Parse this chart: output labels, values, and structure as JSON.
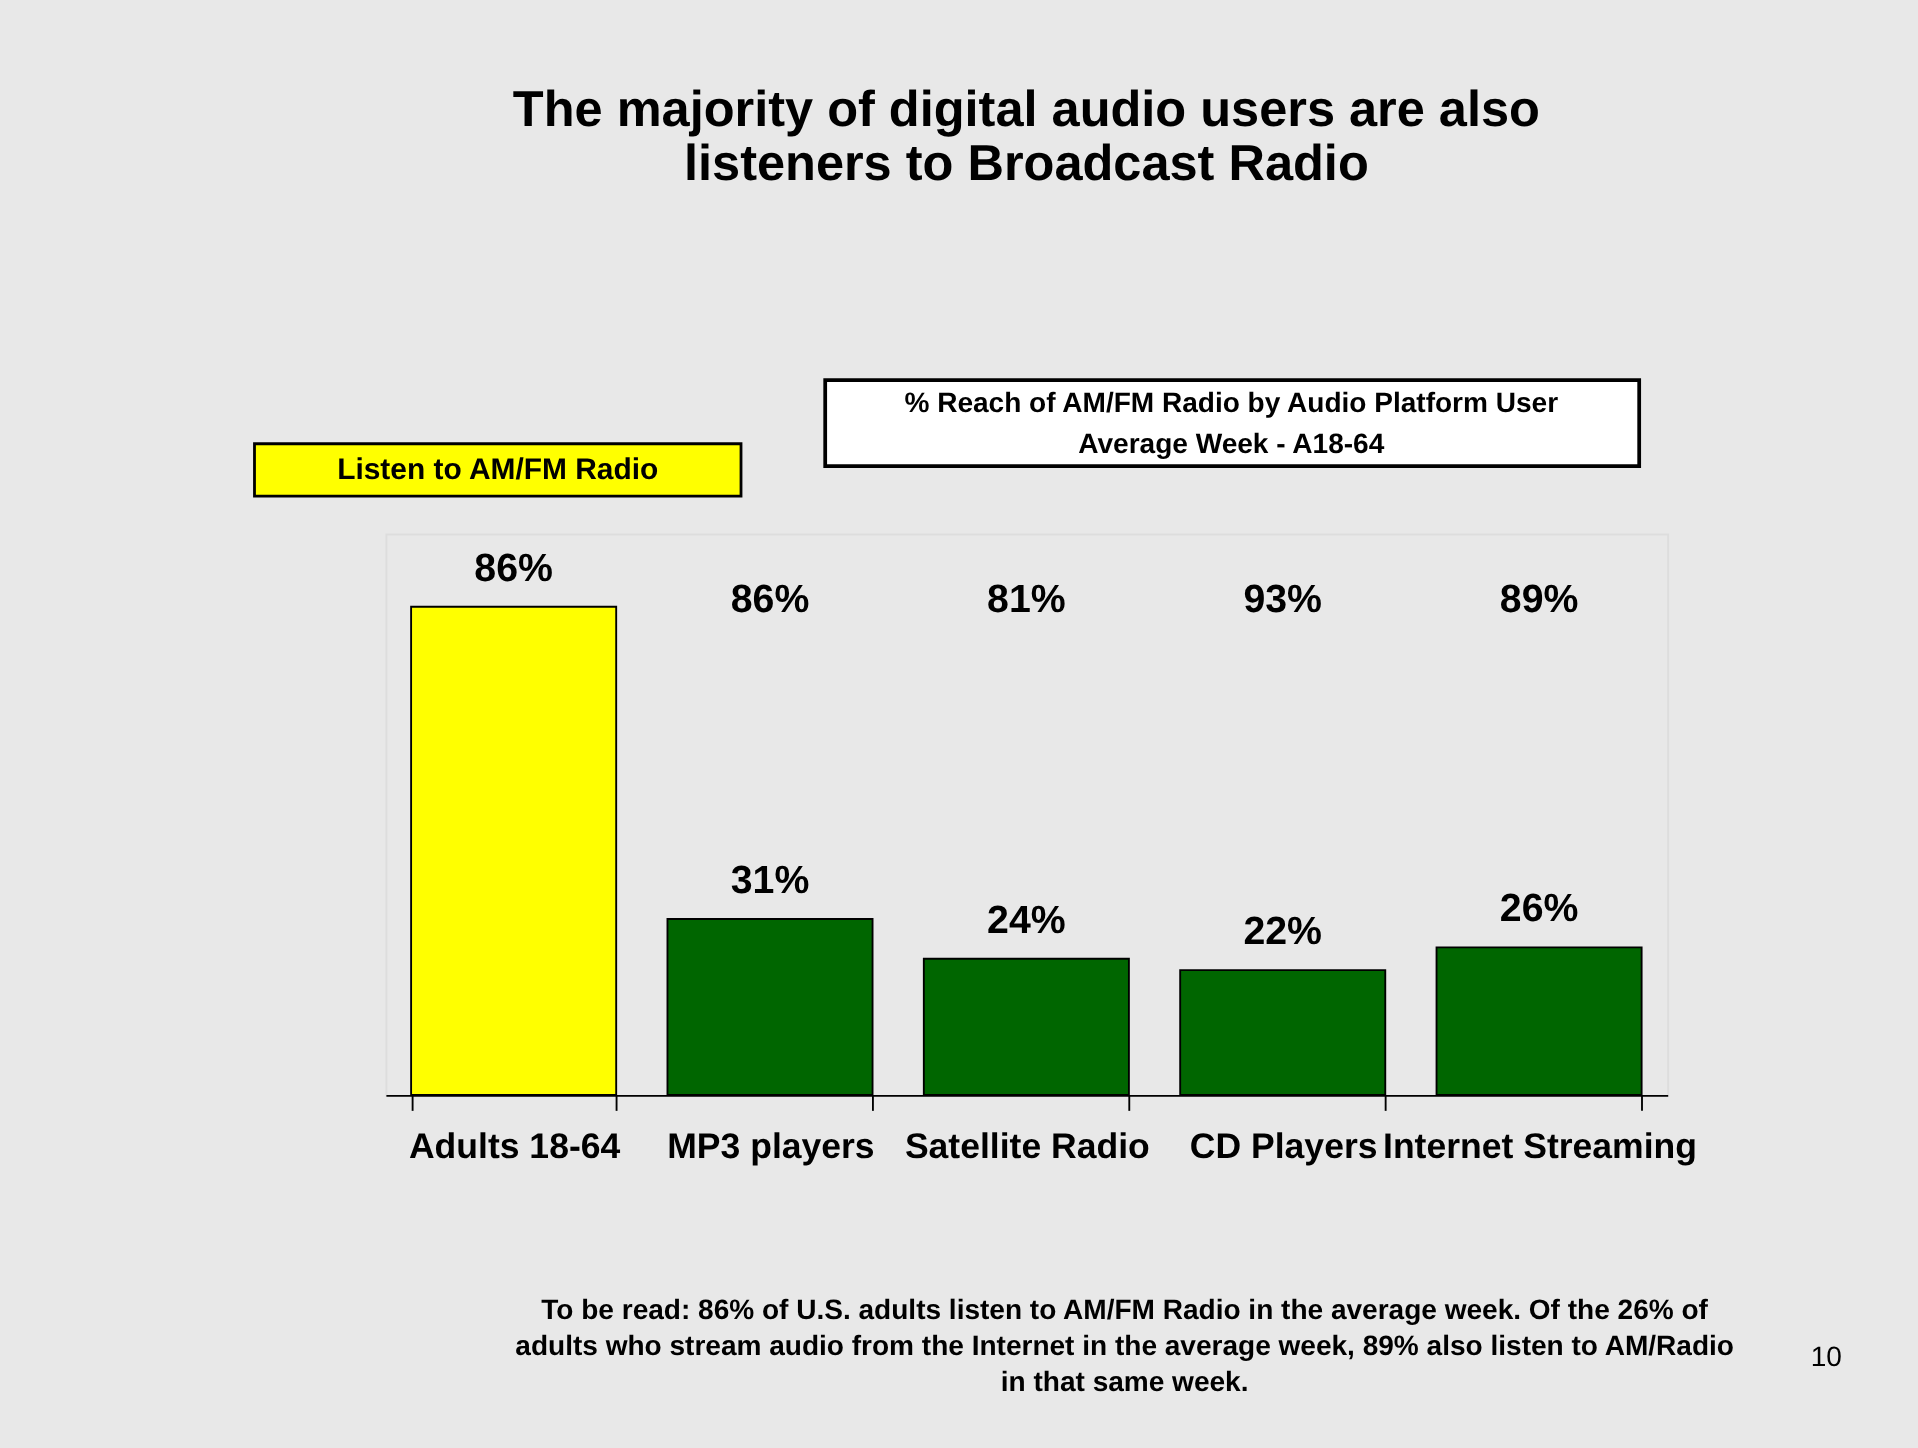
{
  "chart_data": {
    "type": "bar",
    "title": [
      "The majority of digital audio users are also",
      "listeners to Broadcast Radio"
    ],
    "categories": [
      "Adults 18-64",
      "MP3 players",
      "Satellite Radio",
      "CD Players",
      "Internet Streaming"
    ],
    "values": [
      86,
      31,
      24,
      22,
      26
    ],
    "value_labels": [
      "86%",
      "31%",
      "24%",
      "22%",
      "26%"
    ],
    "colors": [
      "#ffff00",
      "#006600",
      "#006600",
      "#006600",
      "#006600"
    ],
    "annotations": [
      "% Reach of AM/FM Radio by Audio Platform User",
      "Average Week - A18-64",
      "Listen to AM/FM Radio",
      "To be read:  86% of  U.S. adults listen to AM/FM Radio in the average week.  Of the 26% of adults who stream audio from the Internet in the average week, 89% also listen to AM/Radio in that same week.",
      "10",
      "86%",
      "81%",
      "93%",
      "89%"
    ]
  }
}
